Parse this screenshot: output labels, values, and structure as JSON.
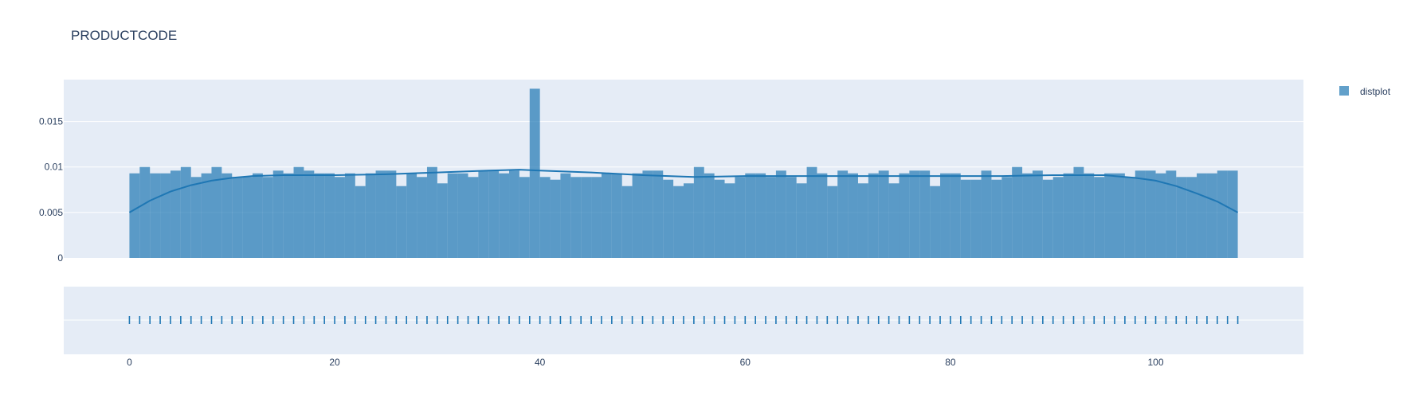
{
  "colors": {
    "plot_bg": "#e5ecf6",
    "grid": "#ffffff",
    "bar": "#1f77b4",
    "text": "#2a3f5f"
  },
  "chart_data": {
    "type": "bar",
    "title": "PRODUCTCODE",
    "legend": {
      "entries": [
        "distplot"
      ],
      "placement": "top-right"
    },
    "histogram": {
      "bin_start": 0,
      "bin_width": 1,
      "density": [
        0.0093,
        0.01,
        0.0093,
        0.0093,
        0.0096,
        0.01,
        0.0089,
        0.0093,
        0.01,
        0.0093,
        0.0089,
        0.0089,
        0.0093,
        0.0089,
        0.0096,
        0.0093,
        0.01,
        0.0096,
        0.0093,
        0.0093,
        0.0089,
        0.0093,
        0.0079,
        0.0093,
        0.0096,
        0.0096,
        0.0079,
        0.0093,
        0.0089,
        0.01,
        0.0082,
        0.0093,
        0.0093,
        0.0089,
        0.0096,
        0.0096,
        0.0093,
        0.0096,
        0.0089,
        0.0186,
        0.0089,
        0.0086,
        0.0093,
        0.0089,
        0.0089,
        0.0089,
        0.0093,
        0.0093,
        0.0079,
        0.0093,
        0.0096,
        0.0096,
        0.0086,
        0.0079,
        0.0082,
        0.01,
        0.0093,
        0.0086,
        0.0082,
        0.0089,
        0.0093,
        0.0093,
        0.0089,
        0.0096,
        0.0089,
        0.0082,
        0.01,
        0.0093,
        0.0079,
        0.0096,
        0.0093,
        0.0082,
        0.0093,
        0.0096,
        0.0082,
        0.0093,
        0.0096,
        0.0096,
        0.0079,
        0.0093,
        0.0093,
        0.0086,
        0.0086,
        0.0096,
        0.0086,
        0.0089,
        0.01,
        0.0093,
        0.0096,
        0.0086,
        0.0089,
        0.0093,
        0.01,
        0.0093,
        0.0089,
        0.0093,
        0.0093,
        0.0089,
        0.0096,
        0.0096,
        0.0093,
        0.0096,
        0.0089,
        0.0089,
        0.0093,
        0.0093,
        0.0096,
        0.0096
      ]
    },
    "kde": {
      "x": [
        0,
        2,
        4,
        6,
        8,
        10,
        12,
        15,
        20,
        25,
        30,
        35,
        38,
        40,
        45,
        50,
        55,
        60,
        65,
        70,
        75,
        80,
        85,
        90,
        95,
        98,
        100,
        102,
        104,
        106,
        108
      ],
      "y": [
        0.005,
        0.0063,
        0.0073,
        0.008,
        0.0085,
        0.0088,
        0.009,
        0.0091,
        0.0091,
        0.0092,
        0.0094,
        0.0096,
        0.0097,
        0.0096,
        0.0094,
        0.0091,
        0.0089,
        0.009,
        0.009,
        0.009,
        0.009,
        0.009,
        0.009,
        0.0091,
        0.0091,
        0.0088,
        0.0085,
        0.0079,
        0.0071,
        0.0062,
        0.005
      ]
    },
    "rug": {
      "x_start": 0,
      "x_end": 108,
      "step": 1
    },
    "xaxis": {
      "range": [
        -6.4,
        114.4
      ],
      "ticks": [
        0,
        20,
        40,
        60,
        80,
        100
      ],
      "tick_labels": [
        "0",
        "20",
        "40",
        "60",
        "80",
        "100"
      ]
    },
    "yaxis": {
      "range": [
        0,
        0.0196
      ],
      "ticks": [
        0,
        0.005,
        0.01,
        0.015
      ],
      "tick_labels": [
        "0",
        "0.005",
        "0.01",
        "0.015"
      ]
    },
    "grid": true
  }
}
